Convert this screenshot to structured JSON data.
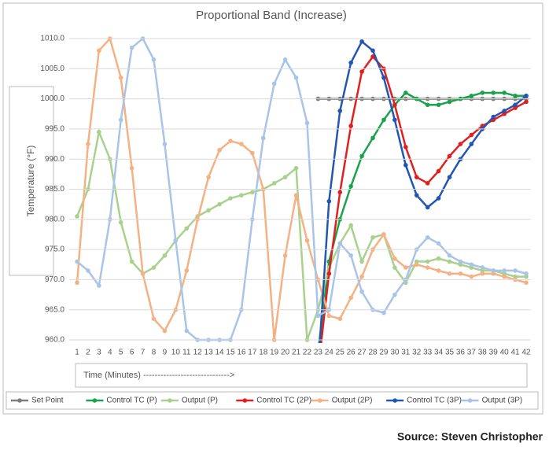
{
  "chart_data": {
    "type": "line",
    "title": "Proportional Band (Increase)",
    "y_label": "Temperature (°F)",
    "x_label": "Time (Minutes) ------------------------------>",
    "source": "Source: Steven Christopher",
    "categories": [
      "1",
      "2",
      "3",
      "4",
      "5",
      "6",
      "7",
      "8",
      "9",
      "10",
      "11",
      "12",
      "13",
      "14",
      "15",
      "16",
      "17",
      "18",
      "19",
      "20",
      "21",
      "22",
      "23",
      "24",
      "25",
      "26",
      "27",
      "28",
      "29",
      "30",
      "31",
      "32",
      "33",
      "34",
      "35",
      "36",
      "37",
      "38",
      "39",
      "40",
      "41",
      "42"
    ],
    "ylim": [
      960,
      1010
    ],
    "yticks": [
      {
        "value": 960,
        "label": "960.0"
      },
      {
        "value": 965,
        "label": "965.0"
      },
      {
        "value": 970,
        "label": "970.0"
      },
      {
        "value": 975,
        "label": "975.0"
      },
      {
        "value": 980,
        "label": "980.0"
      },
      {
        "value": 985,
        "label": "985.0"
      },
      {
        "value": 990,
        "label": "990.0"
      },
      {
        "value": 995,
        "label": "995.0"
      },
      {
        "value": 1000,
        "label": "1000.0"
      },
      {
        "value": 1005,
        "label": "1005.0"
      },
      {
        "value": 1010,
        "label": "1010.0"
      }
    ],
    "grid": true,
    "series": [
      {
        "name": "Set Point",
        "color": "#7f7f7f",
        "values": [
          null,
          null,
          null,
          null,
          null,
          null,
          null,
          null,
          null,
          null,
          null,
          null,
          null,
          null,
          null,
          null,
          null,
          null,
          null,
          null,
          null,
          null,
          1000,
          1000,
          1000,
          1000,
          1000,
          1000,
          1000,
          1000,
          1000,
          1000,
          1000,
          1000,
          1000,
          1000,
          1000,
          1000,
          1000,
          1000,
          1000,
          1000
        ]
      },
      {
        "name": "Control TC (P)",
        "color": "#1aa34a",
        "values": [
          null,
          null,
          null,
          null,
          null,
          null,
          null,
          null,
          null,
          null,
          null,
          null,
          null,
          null,
          null,
          null,
          null,
          null,
          null,
          null,
          null,
          null,
          958,
          973,
          980,
          985.5,
          990.5,
          993.5,
          996.5,
          999,
          1001,
          1000,
          999,
          999,
          999.5,
          1000,
          1000.5,
          1001,
          1001,
          1001,
          1000.5,
          1000.5
        ]
      },
      {
        "name": "Output (P)",
        "color": "#a9d18e",
        "values": [
          980.5,
          985,
          994.5,
          990,
          979.5,
          973,
          971,
          972,
          974,
          976.5,
          978.5,
          980.5,
          981.5,
          982.5,
          983.5,
          984,
          984.5,
          985,
          986,
          987,
          988.5,
          960,
          965,
          972,
          976,
          979,
          973,
          977,
          977.5,
          972,
          969.5,
          973,
          973,
          973.5,
          973,
          972.5,
          972,
          971.5,
          971.5,
          971,
          970.5,
          970.5
        ]
      },
      {
        "name": "Control TC (2P)",
        "color": "#e02020",
        "values": [
          null,
          null,
          null,
          null,
          null,
          null,
          null,
          null,
          null,
          null,
          null,
          null,
          null,
          null,
          null,
          null,
          null,
          null,
          null,
          null,
          null,
          null,
          955,
          971,
          984.5,
          995.5,
          1004.5,
          1007,
          1005,
          999,
          992,
          987,
          986,
          988,
          990.5,
          992.5,
          994,
          995.5,
          996.5,
          997.5,
          998.5,
          999.5
        ]
      },
      {
        "name": "Output (2P)",
        "color": "#f4b183",
        "values": [
          969.5,
          992.5,
          1008,
          1010,
          1003.5,
          988.5,
          971,
          963.5,
          961.5,
          965,
          971.5,
          980,
          987,
          991.5,
          993,
          992.5,
          991,
          985,
          960,
          974,
          984,
          976.5,
          970,
          964,
          963.5,
          967,
          970.5,
          975,
          977.5,
          973.5,
          972,
          972.5,
          972,
          971.5,
          971,
          971,
          970.5,
          971,
          971,
          970.5,
          970,
          969.5
        ]
      },
      {
        "name": "Control TC (3P)",
        "color": "#2455b0",
        "values": [
          null,
          null,
          null,
          null,
          null,
          null,
          null,
          null,
          null,
          null,
          null,
          null,
          null,
          null,
          null,
          null,
          null,
          null,
          null,
          null,
          null,
          null,
          955,
          983,
          998,
          1006,
          1009.5,
          1008,
          1003.5,
          996.5,
          989,
          984,
          982,
          983.5,
          987,
          990,
          992.5,
          995,
          997,
          998,
          999,
          1000.5
        ]
      },
      {
        "name": "Output (3P)",
        "color": "#a9c4e8",
        "values": [
          973,
          971.5,
          969,
          980,
          996.5,
          1008.5,
          1010,
          1006.5,
          992.5,
          976.5,
          961.5,
          960,
          960,
          960,
          960,
          965,
          980,
          993.5,
          1002.5,
          1006.5,
          1003.5,
          996,
          964,
          965,
          976,
          974,
          968,
          965,
          964.5,
          967.5,
          970,
          975,
          977,
          976,
          974,
          973,
          972.5,
          972,
          971.5,
          971.5,
          971.5,
          971
        ]
      }
    ]
  }
}
